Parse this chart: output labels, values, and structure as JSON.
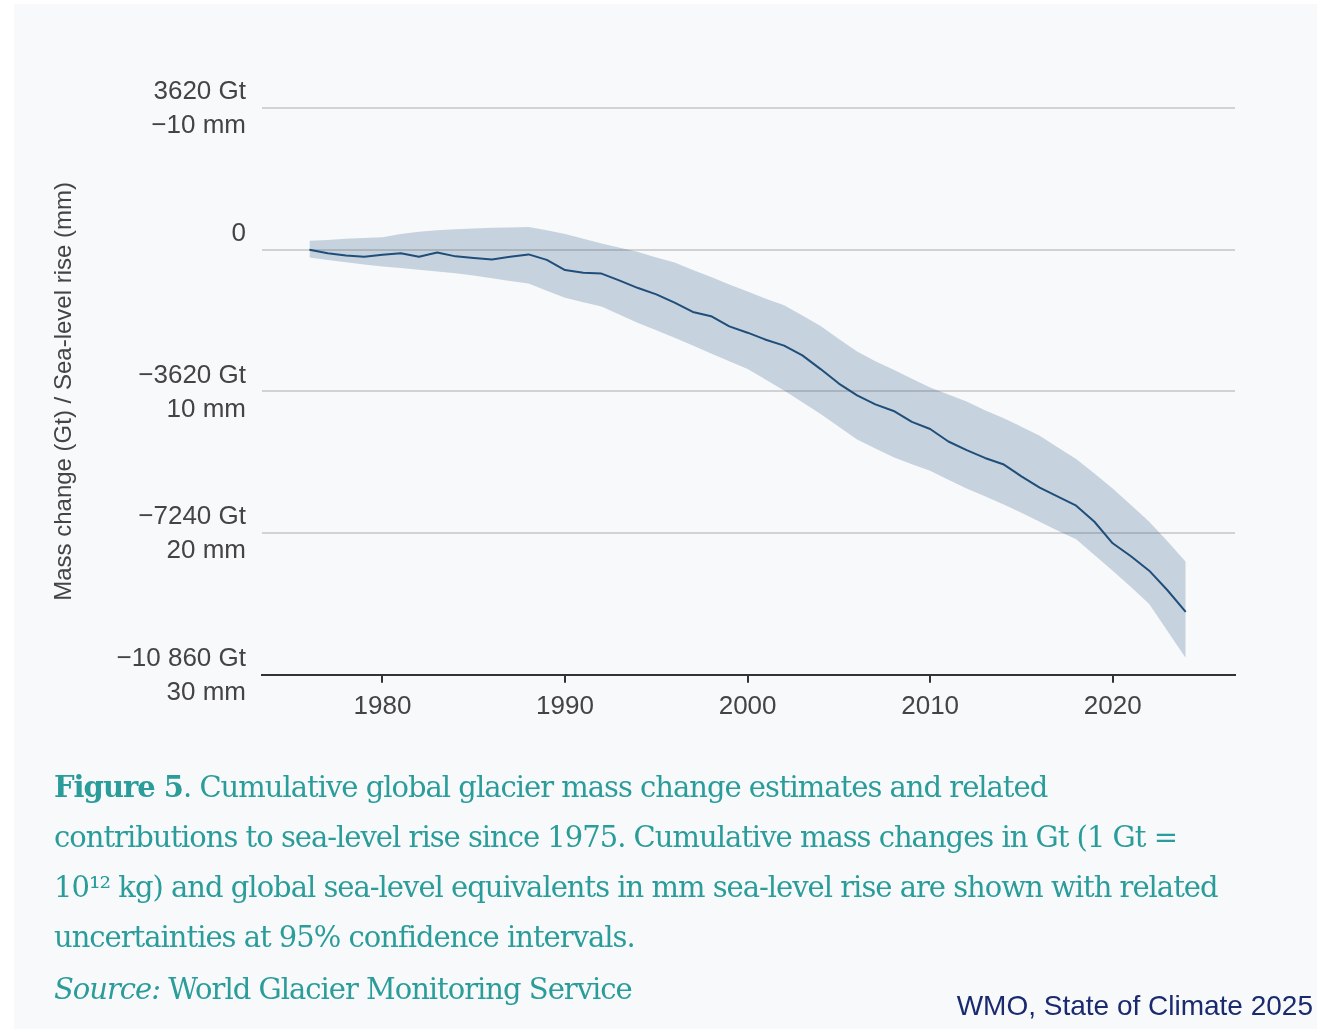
{
  "chart_data": {
    "type": "line",
    "ylabel": "Mass change (Gt) / Sea-level rise (mm)",
    "x": [
      1976,
      1977,
      1978,
      1979,
      1980,
      1981,
      1982,
      1983,
      1984,
      1985,
      1986,
      1987,
      1988,
      1989,
      1990,
      1991,
      1992,
      1993,
      1994,
      1995,
      1996,
      1997,
      1998,
      1999,
      2000,
      2001,
      2002,
      2003,
      2004,
      2005,
      2006,
      2007,
      2008,
      2009,
      2010,
      2011,
      2012,
      2013,
      2014,
      2015,
      2016,
      2017,
      2018,
      2019,
      2020,
      2021,
      2022,
      2023,
      2024
    ],
    "series": [
      {
        "color": "#1f4e79",
        "values": [
          0,
          -90,
          -150,
          -180,
          -130,
          -90,
          -180,
          -70,
          -170,
          -210,
          -250,
          -180,
          -120,
          -260,
          -520,
          -590,
          -610,
          -790,
          -980,
          -1140,
          -1350,
          -1590,
          -1700,
          -1960,
          -2120,
          -2300,
          -2450,
          -2700,
          -3050,
          -3420,
          -3720,
          -3950,
          -4120,
          -4400,
          -4580,
          -4900,
          -5120,
          -5320,
          -5480,
          -5790,
          -6080,
          -6310,
          -6540,
          -6950,
          -7500,
          -7830,
          -8200,
          -8700,
          -9250
        ],
        "upper": [
          230,
          250,
          280,
          300,
          320,
          400,
          460,
          500,
          520,
          540,
          560,
          570,
          580,
          500,
          400,
          280,
          160,
          50,
          -60,
          -200,
          -330,
          -520,
          -700,
          -890,
          -1070,
          -1250,
          -1420,
          -1680,
          -1950,
          -2280,
          -2600,
          -2850,
          -3070,
          -3300,
          -3520,
          -3700,
          -3880,
          -4100,
          -4300,
          -4520,
          -4750,
          -5050,
          -5350,
          -5720,
          -6100,
          -6520,
          -6950,
          -7450,
          -7970
        ],
        "lower": [
          -200,
          -260,
          -320,
          -380,
          -430,
          -470,
          -510,
          -560,
          -600,
          -660,
          -730,
          -800,
          -865,
          -1050,
          -1230,
          -1340,
          -1450,
          -1660,
          -1870,
          -2060,
          -2250,
          -2450,
          -2650,
          -2850,
          -3050,
          -3320,
          -3600,
          -3900,
          -4200,
          -4520,
          -4850,
          -5080,
          -5300,
          -5480,
          -5650,
          -5880,
          -6100,
          -6300,
          -6500,
          -6720,
          -6950,
          -7180,
          -7400,
          -7800,
          -8200,
          -8620,
          -9050,
          -9740,
          -10430
        ]
      }
    ],
    "xlim": [
      1973.4,
      2026.7
    ],
    "xticks": [
      1980,
      1990,
      2000,
      2010,
      2020
    ],
    "ylim": [
      -10860,
      3620
    ],
    "yticks": [
      {
        "value": 3620,
        "label": "3620 Gt"
      },
      0,
      {
        "value": -3620,
        "label": "−3620 Gt"
      },
      {
        "value": -7240,
        "label": "−7240 Gt"
      },
      {
        "value": -10860,
        "label": "−10 860 Gt"
      }
    ],
    "y2lim": [
      30,
      -10
    ],
    "y2ticks": [
      {
        "value": -10,
        "label": "−10 mm"
      },
      {
        "value": 10,
        "label": "10 mm"
      },
      {
        "value": 20,
        "label": "20 mm"
      },
      {
        "value": 30,
        "label": "30 mm"
      }
    ],
    "grid": "y",
    "annotations": [
      "Figure 5",
      ". Cumulative global glacier mass change estimates and related contributions to sea-level rise since 1975. Cumulative mass changes in Gt (1 Gt = 10¹² kg) and global sea-level equivalents in mm sea-level rise are shown with related uncertainties at 95% confidence intervals.",
      "Source:",
      " World Glacier Monitoring Service",
      "WMO, State of Climate 2025"
    ]
  }
}
